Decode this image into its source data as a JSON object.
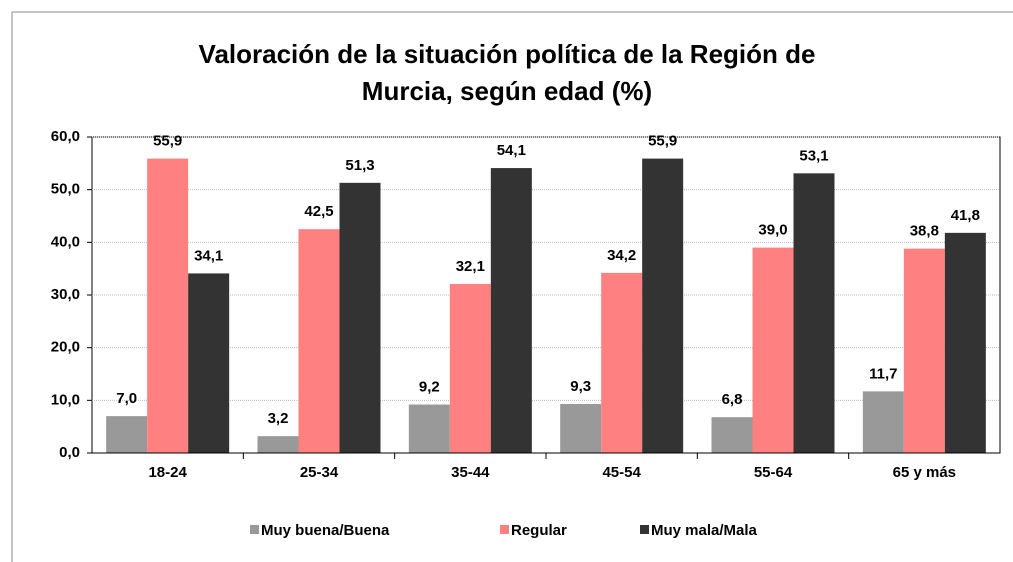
{
  "chart_data": {
    "type": "bar",
    "title": [
      "Valoración de la situación política de la Región de",
      "Murcia, según edad (%)"
    ],
    "categories": [
      "18-24",
      "25-34",
      "35-44",
      "45-54",
      "55-64",
      "65 y más"
    ],
    "series": [
      {
        "name": "Muy buena/Buena",
        "color": "#999999",
        "values": [
          7.0,
          3.2,
          9.2,
          9.3,
          6.8,
          11.7
        ],
        "value_labels": [
          "7,0",
          "3,2",
          "9,2",
          "9,3",
          "6,8",
          "11,7"
        ]
      },
      {
        "name": "Regular",
        "color": "#ff8080",
        "values": [
          55.9,
          42.5,
          32.1,
          34.2,
          39.0,
          38.8
        ],
        "value_labels": [
          "55,9",
          "42,5",
          "32,1",
          "34,2",
          "39,0",
          "38,8"
        ]
      },
      {
        "name": "Muy mala/Mala",
        "color": "#333333",
        "values": [
          34.1,
          51.3,
          54.1,
          55.9,
          53.1,
          41.8
        ],
        "value_labels": [
          "34,1",
          "51,3",
          "54,1",
          "55,9",
          "53,1",
          "41,8"
        ]
      }
    ],
    "ylim": [
      0,
      60
    ],
    "yticks": [
      {
        "value": 0,
        "label": "0,0"
      },
      {
        "value": 10,
        "label": "10,0"
      },
      {
        "value": 20,
        "label": "20,0"
      },
      {
        "value": 30,
        "label": "30,0"
      },
      {
        "value": 40,
        "label": "40,0"
      },
      {
        "value": 50,
        "label": "50,0"
      },
      {
        "value": 60,
        "label": "60,0"
      }
    ],
    "grid": true,
    "legend": "bottom"
  }
}
